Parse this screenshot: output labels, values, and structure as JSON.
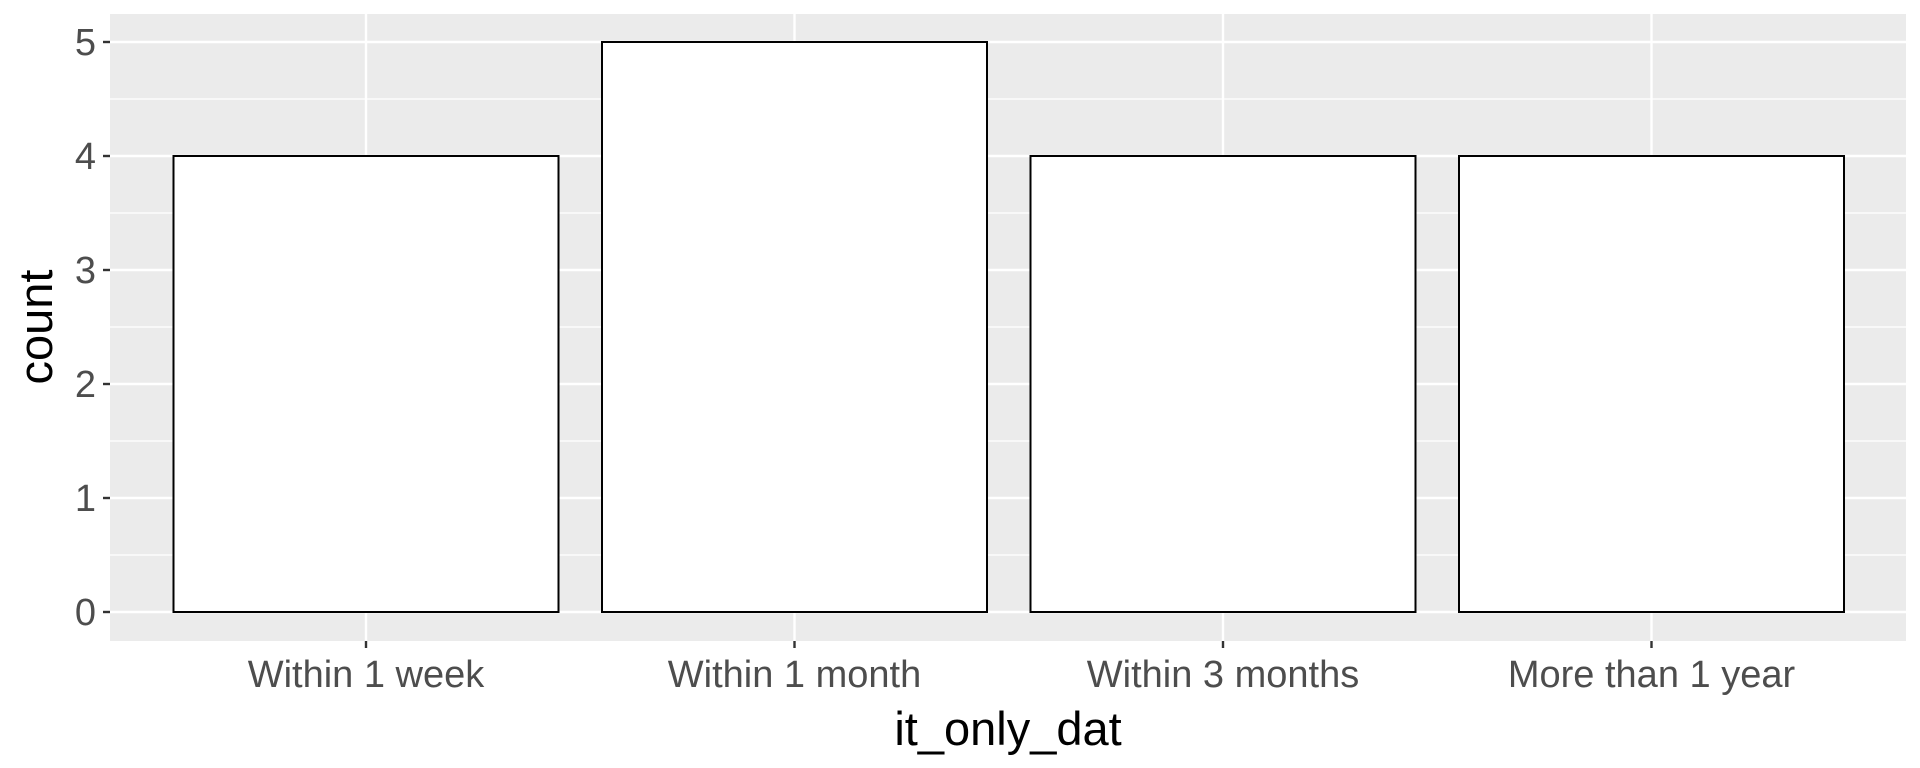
{
  "chart_data": {
    "type": "bar",
    "categories": [
      "Within 1 week",
      "Within 1 month",
      "Within 3 months",
      "More than 1 year"
    ],
    "values": [
      4,
      5,
      4,
      4
    ],
    "xlabel": "it_only_dat",
    "ylabel": "count",
    "ylim": [
      0,
      5.25
    ],
    "yticks": [
      0,
      1,
      2,
      3,
      4,
      5
    ],
    "grid": true,
    "panel_background": "#ebebeb",
    "gridline_color": "#ffffff",
    "bar_fill": "#ffffff",
    "bar_outline": "#000000"
  }
}
